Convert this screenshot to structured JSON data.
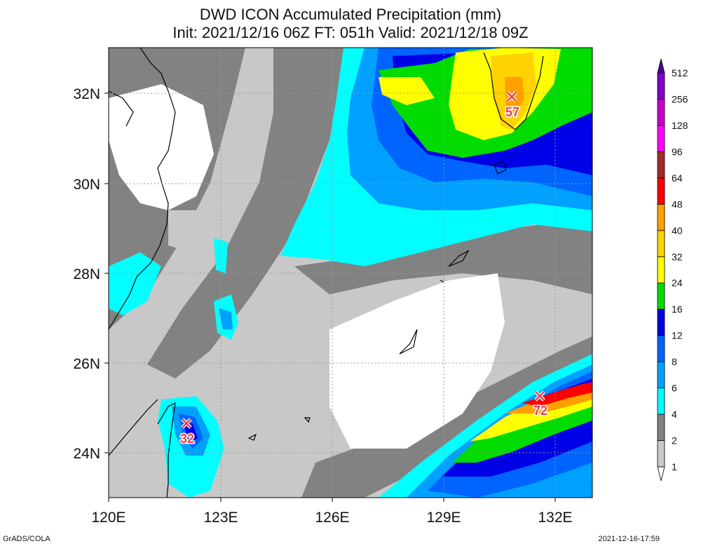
{
  "title_line1": "DWD ICON Accumulated Precipitation (mm)",
  "title_line2": "Init: 2021/12/16 06Z  FT: 051h  Valid: 2021/12/18 09Z",
  "footer_left": "GrADS/COLA",
  "footer_right": "2021-12-16-17:59",
  "axes": {
    "lon_ticks": [
      "120E",
      "123E",
      "126E",
      "129E",
      "132E"
    ],
    "lat_ticks": [
      "32N",
      "30N",
      "28N",
      "26N",
      "24N"
    ],
    "lon_values": [
      120,
      123,
      126,
      129,
      132
    ],
    "lat_values": [
      32,
      30,
      28,
      26,
      24
    ],
    "lon_range": [
      120,
      133
    ],
    "lat_range": [
      23,
      33
    ],
    "grid": "dotted"
  },
  "colorbar": {
    "levels": [
      "1",
      "2",
      "4",
      "6",
      "8",
      "12",
      "16",
      "24",
      "32",
      "40",
      "48",
      "64",
      "96",
      "128",
      "256",
      "512"
    ],
    "colors": [
      "#ffffff",
      "#c8c8c8",
      "#828282",
      "#00ffff",
      "#00a0ff",
      "#0064ff",
      "#0000e6",
      "#00dc00",
      "#ffff00",
      "#ffd200",
      "#ffa000",
      "#ff0000",
      "#a52a2a",
      "#ff00ff",
      "#c800c8",
      "#8200c8",
      "#500096"
    ]
  },
  "maxima": [
    {
      "label": "57",
      "lon": 130.8,
      "lat": 31.9
    },
    {
      "label": "32",
      "lon": 122.2,
      "lat": 24.6
    },
    {
      "label": "72",
      "lon": 131.6,
      "lat": 25.2
    }
  ]
}
